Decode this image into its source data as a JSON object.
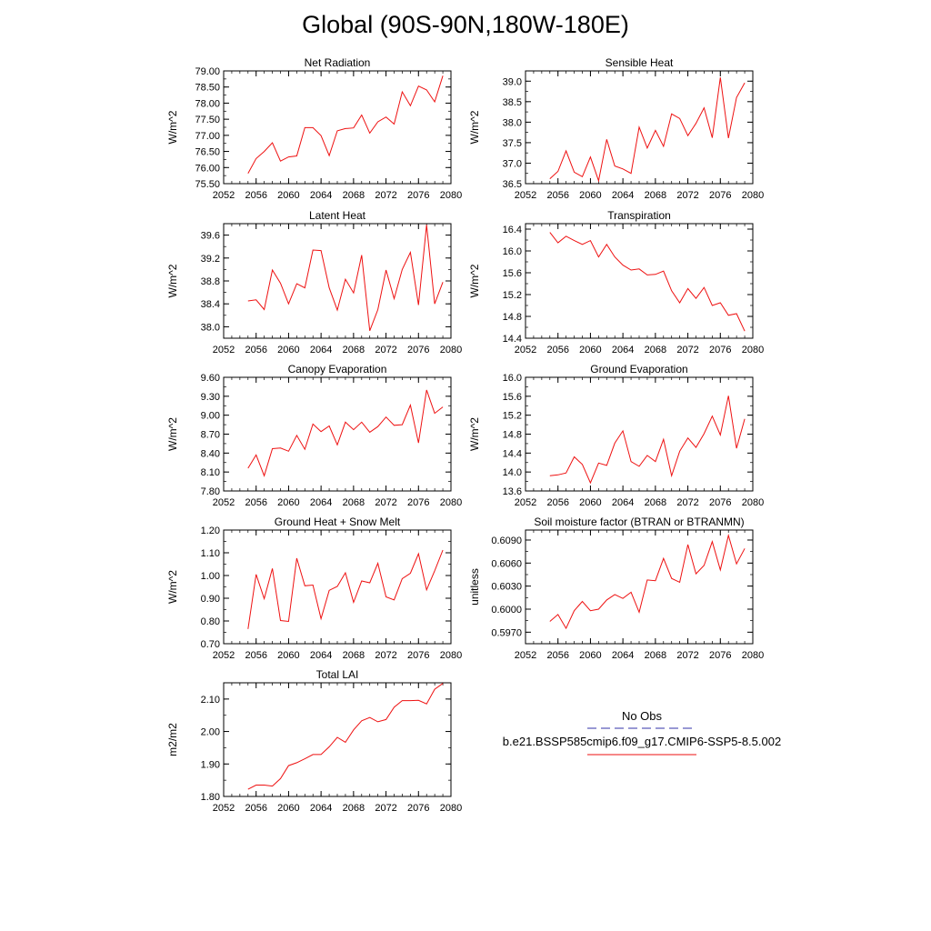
{
  "title": "Global (90S-90N,180W-180E)",
  "colors": {
    "model_line": "#ee1111",
    "obs_line": "#3333aa",
    "axis": "#000000"
  },
  "legend": {
    "obs_label": "No Obs",
    "model_label": "b.e21.BSSP585cmip6.f09_g17.CMIP6-SSP5-8.5.002"
  },
  "chart_data": [
    {
      "type": "line",
      "title": "Net Radiation",
      "ylabel": "W/m^2",
      "xlim": [
        2052,
        2080
      ],
      "ylim": [
        75.5,
        79.0
      ],
      "xticks": [
        2052,
        2056,
        2060,
        2064,
        2068,
        2072,
        2076,
        2080
      ],
      "yticks": [
        75.5,
        76.0,
        76.5,
        77.0,
        77.5,
        78.0,
        78.5,
        79.0
      ],
      "ytick_labels": [
        "75.50",
        "76.00",
        "76.50",
        "77.00",
        "77.50",
        "78.00",
        "78.50",
        "79.00"
      ],
      "series": [
        {
          "x": [
            2055,
            2056,
            2057,
            2058,
            2059,
            2060,
            2061,
            2062,
            2063,
            2064,
            2065,
            2066,
            2067,
            2068,
            2069,
            2070,
            2071,
            2072,
            2073,
            2074,
            2075,
            2076,
            2077,
            2078,
            2079
          ],
          "y": [
            75.82,
            76.28,
            76.5,
            76.77,
            76.2,
            76.33,
            76.36,
            77.24,
            77.24,
            76.99,
            76.37,
            77.14,
            77.21,
            77.23,
            77.63,
            77.07,
            77.42,
            77.57,
            77.35,
            78.35,
            77.92,
            78.53,
            78.41,
            78.04,
            78.85
          ]
        }
      ]
    },
    {
      "type": "line",
      "title": "Sensible Heat",
      "ylabel": "W/m^2",
      "xlim": [
        2052,
        2080
      ],
      "ylim": [
        36.5,
        39.25
      ],
      "xticks": [
        2052,
        2056,
        2060,
        2064,
        2068,
        2072,
        2076,
        2080
      ],
      "yticks": [
        36.5,
        37.0,
        37.5,
        38.0,
        38.5,
        39.0
      ],
      "ytick_labels": [
        "36.5",
        "37.0",
        "37.5",
        "38.0",
        "38.5",
        "39.0"
      ],
      "series": [
        {
          "x": [
            2055,
            2056,
            2057,
            2058,
            2059,
            2060,
            2061,
            2062,
            2063,
            2064,
            2065,
            2066,
            2067,
            2068,
            2069,
            2070,
            2071,
            2072,
            2073,
            2074,
            2075,
            2076,
            2077,
            2078,
            2079
          ],
          "y": [
            36.62,
            36.8,
            37.3,
            36.78,
            36.67,
            37.15,
            36.57,
            37.58,
            36.93,
            36.86,
            36.75,
            37.88,
            37.37,
            37.8,
            37.41,
            38.2,
            38.09,
            37.67,
            37.97,
            38.35,
            37.62,
            39.09,
            37.61,
            38.6,
            38.96
          ]
        }
      ]
    },
    {
      "type": "line",
      "title": "Latent Heat",
      "ylabel": "W/m^2",
      "xlim": [
        2052,
        2080
      ],
      "ylim": [
        37.8,
        39.8
      ],
      "xticks": [
        2052,
        2056,
        2060,
        2064,
        2068,
        2072,
        2076,
        2080
      ],
      "yticks": [
        38.0,
        38.4,
        38.8,
        39.2,
        39.6
      ],
      "ytick_labels": [
        "38.0",
        "38.4",
        "38.8",
        "39.2",
        "39.6"
      ],
      "series": [
        {
          "x": [
            2055,
            2056,
            2057,
            2058,
            2059,
            2060,
            2061,
            2062,
            2063,
            2064,
            2065,
            2066,
            2067,
            2068,
            2069,
            2070,
            2071,
            2072,
            2073,
            2074,
            2075,
            2076,
            2077,
            2078,
            2079
          ],
          "y": [
            38.45,
            38.47,
            38.3,
            38.99,
            38.76,
            38.4,
            38.75,
            38.68,
            39.34,
            39.33,
            38.68,
            38.29,
            38.83,
            38.59,
            39.25,
            37.93,
            38.3,
            38.99,
            38.49,
            39.0,
            39.3,
            38.38,
            39.78,
            38.4,
            38.78
          ]
        }
      ]
    },
    {
      "type": "line",
      "title": "Transpiration",
      "ylabel": "W/m^2",
      "xlim": [
        2052,
        2080
      ],
      "ylim": [
        14.4,
        16.5
      ],
      "xticks": [
        2052,
        2056,
        2060,
        2064,
        2068,
        2072,
        2076,
        2080
      ],
      "yticks": [
        14.4,
        14.8,
        15.2,
        15.6,
        16.0,
        16.4
      ],
      "ytick_labels": [
        "14.4",
        "14.8",
        "15.2",
        "15.6",
        "16.0",
        "16.4"
      ],
      "series": [
        {
          "x": [
            2055,
            2056,
            2057,
            2058,
            2059,
            2060,
            2061,
            2062,
            2063,
            2064,
            2065,
            2066,
            2067,
            2068,
            2069,
            2070,
            2071,
            2072,
            2073,
            2074,
            2075,
            2076,
            2077,
            2078,
            2079
          ],
          "y": [
            16.34,
            16.15,
            16.27,
            16.19,
            16.12,
            16.19,
            15.89,
            16.12,
            15.89,
            15.74,
            15.65,
            15.67,
            15.56,
            15.57,
            15.63,
            15.27,
            15.05,
            15.31,
            15.13,
            15.33,
            15.0,
            15.05,
            14.82,
            14.85,
            14.53
          ]
        }
      ]
    },
    {
      "type": "line",
      "title": "Canopy Evaporation",
      "ylabel": "W/m^2",
      "xlim": [
        2052,
        2080
      ],
      "ylim": [
        7.8,
        9.6
      ],
      "xticks": [
        2052,
        2056,
        2060,
        2064,
        2068,
        2072,
        2076,
        2080
      ],
      "yticks": [
        7.8,
        8.1,
        8.4,
        8.7,
        9.0,
        9.3,
        9.6
      ],
      "ytick_labels": [
        "7.80",
        "8.10",
        "8.40",
        "8.70",
        "9.00",
        "9.30",
        "9.60"
      ],
      "series": [
        {
          "x": [
            2055,
            2056,
            2057,
            2058,
            2059,
            2060,
            2061,
            2062,
            2063,
            2064,
            2065,
            2066,
            2067,
            2068,
            2069,
            2070,
            2071,
            2072,
            2073,
            2074,
            2075,
            2076,
            2077,
            2078,
            2079
          ],
          "y": [
            8.16,
            8.37,
            8.04,
            8.47,
            8.48,
            8.43,
            8.68,
            8.46,
            8.86,
            8.74,
            8.83,
            8.53,
            8.89,
            8.77,
            8.89,
            8.73,
            8.82,
            8.97,
            8.84,
            8.85,
            9.16,
            8.56,
            9.4,
            9.03,
            9.13
          ]
        }
      ]
    },
    {
      "type": "line",
      "title": "Ground Evaporation",
      "ylabel": "W/m^2",
      "xlim": [
        2052,
        2080
      ],
      "ylim": [
        13.6,
        16.0
      ],
      "xticks": [
        2052,
        2056,
        2060,
        2064,
        2068,
        2072,
        2076,
        2080
      ],
      "yticks": [
        13.6,
        14.0,
        14.4,
        14.8,
        15.2,
        15.6,
        16.0
      ],
      "ytick_labels": [
        "13.6",
        "14.0",
        "14.4",
        "14.8",
        "15.2",
        "15.6",
        "16.0"
      ],
      "series": [
        {
          "x": [
            2055,
            2056,
            2057,
            2058,
            2059,
            2060,
            2061,
            2062,
            2063,
            2064,
            2065,
            2066,
            2067,
            2068,
            2069,
            2070,
            2071,
            2072,
            2073,
            2074,
            2075,
            2076,
            2077,
            2078,
            2079
          ],
          "y": [
            13.92,
            13.94,
            13.98,
            14.32,
            14.16,
            13.77,
            14.19,
            14.14,
            14.61,
            14.87,
            14.22,
            14.12,
            14.35,
            14.22,
            14.69,
            13.92,
            14.44,
            14.72,
            14.52,
            14.81,
            15.18,
            14.78,
            15.61,
            14.5,
            15.12
          ]
        }
      ]
    },
    {
      "type": "line",
      "title": "Ground Heat + Snow Melt",
      "ylabel": "W/m^2",
      "xlim": [
        2052,
        2080
      ],
      "ylim": [
        0.7,
        1.2
      ],
      "xticks": [
        2052,
        2056,
        2060,
        2064,
        2068,
        2072,
        2076,
        2080
      ],
      "yticks": [
        0.7,
        0.8,
        0.9,
        1.0,
        1.1,
        1.2
      ],
      "ytick_labels": [
        "0.70",
        "0.80",
        "0.90",
        "1.00",
        "1.10",
        "1.20"
      ],
      "series": [
        {
          "x": [
            2055,
            2056,
            2057,
            2058,
            2059,
            2060,
            2061,
            2062,
            2063,
            2064,
            2065,
            2066,
            2067,
            2068,
            2069,
            2070,
            2071,
            2072,
            2073,
            2074,
            2075,
            2076,
            2077,
            2078,
            2079
          ],
          "y": [
            0.765,
            1.005,
            0.898,
            1.031,
            0.802,
            0.798,
            1.076,
            0.955,
            0.958,
            0.81,
            0.935,
            0.952,
            1.012,
            0.882,
            0.976,
            0.968,
            1.054,
            0.906,
            0.893,
            0.986,
            1.01,
            1.096,
            0.937,
            1.021,
            1.112
          ]
        }
      ]
    },
    {
      "type": "line",
      "title": "Soil moisture factor (BTRAN or BTRANMN)",
      "ylabel": "unitless",
      "xlim": [
        2052,
        2080
      ],
      "ylim": [
        0.5955,
        0.6103
      ],
      "xticks": [
        2052,
        2056,
        2060,
        2064,
        2068,
        2072,
        2076,
        2080
      ],
      "yticks": [
        0.597,
        0.6,
        0.603,
        0.606,
        0.609
      ],
      "ytick_labels": [
        "0.5970",
        "0.6000",
        "0.6030",
        "0.6060",
        "0.6090"
      ],
      "series": [
        {
          "x": [
            2055,
            2056,
            2057,
            2058,
            2059,
            2060,
            2061,
            2062,
            2063,
            2064,
            2065,
            2066,
            2067,
            2068,
            2069,
            2070,
            2071,
            2072,
            2073,
            2074,
            2075,
            2076,
            2077,
            2078,
            2079
          ],
          "y": [
            0.5984,
            0.5993,
            0.5975,
            0.5998,
            0.601,
            0.5998,
            0.6,
            0.6012,
            0.6019,
            0.6014,
            0.6022,
            0.5996,
            0.6038,
            0.6037,
            0.6066,
            0.604,
            0.6035,
            0.6084,
            0.6046,
            0.6057,
            0.6088,
            0.6051,
            0.6096,
            0.6059,
            0.6079
          ]
        }
      ]
    },
    {
      "type": "line",
      "title": "Total LAI",
      "ylabel": "m2/m2",
      "xlim": [
        2052,
        2080
      ],
      "ylim": [
        1.8,
        2.15
      ],
      "xticks": [
        2052,
        2056,
        2060,
        2064,
        2068,
        2072,
        2076,
        2080
      ],
      "yticks": [
        1.8,
        1.9,
        2.0,
        2.1
      ],
      "ytick_labels": [
        "1.80",
        "1.90",
        "2.00",
        "2.10"
      ],
      "series": [
        {
          "x": [
            2055,
            2056,
            2057,
            2058,
            2059,
            2060,
            2061,
            2062,
            2063,
            2064,
            2065,
            2066,
            2067,
            2068,
            2069,
            2070,
            2071,
            2072,
            2073,
            2074,
            2075,
            2076,
            2077,
            2078,
            2079
          ],
          "y": [
            1.822,
            1.835,
            1.835,
            1.832,
            1.855,
            1.895,
            1.904,
            1.916,
            1.929,
            1.929,
            1.953,
            1.982,
            1.967,
            2.005,
            2.033,
            2.043,
            2.03,
            2.037,
            2.075,
            2.095,
            2.095,
            2.096,
            2.085,
            2.13,
            2.148
          ]
        }
      ]
    }
  ]
}
